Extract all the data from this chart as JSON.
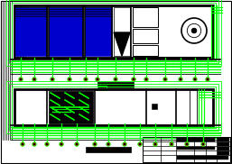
{
  "bg_color": "#ffffff",
  "green": "#00ff00",
  "blue": "#0000cd",
  "black": "#000000",
  "red": "#ff0000",
  "fig_width": 2.57,
  "fig_height": 1.82,
  "dpi": 100
}
